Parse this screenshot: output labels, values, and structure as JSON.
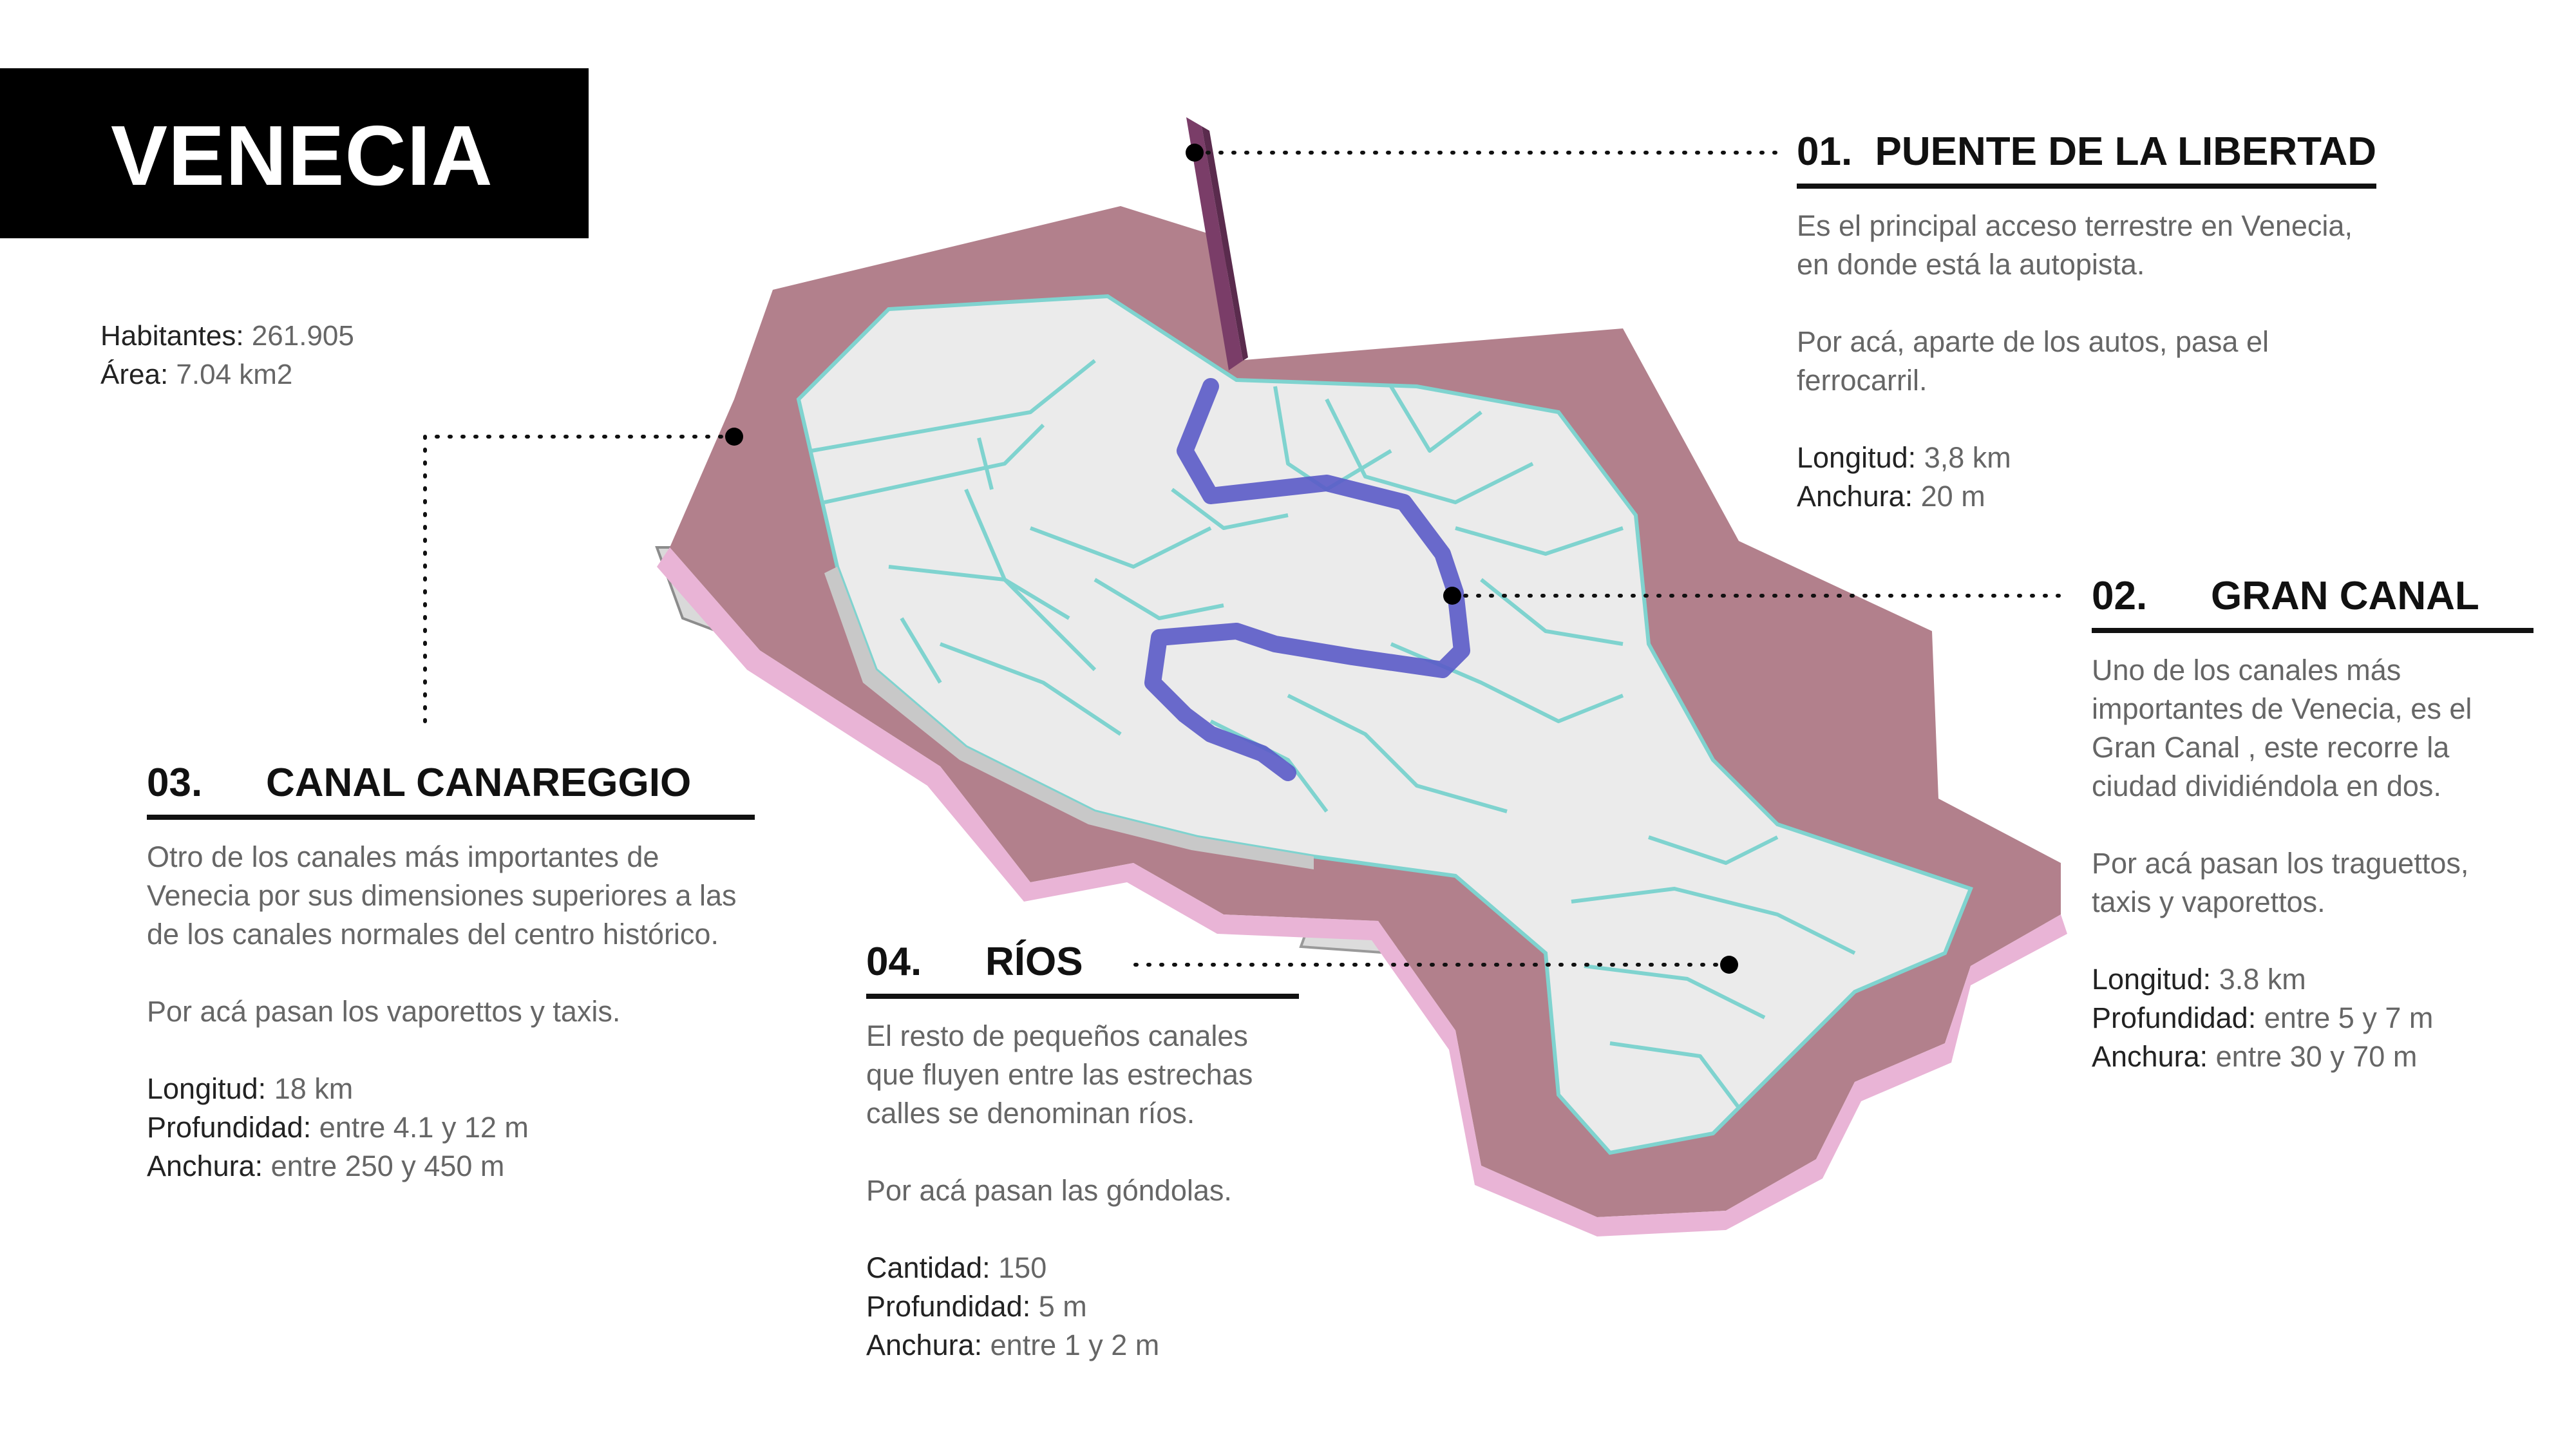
{
  "title": "VENECIA",
  "stats": {
    "habitantes_label": "Habitantes:",
    "habitantes_value": "261.905",
    "area_label": "Área:",
    "area_value": "7.04 km2"
  },
  "colors": {
    "lagoon": "#b2808c",
    "lagoon_edge": "#e9b4d6",
    "land": "#ebebeb",
    "canal": "#bfe6e4",
    "canal_edge": "#7fd3cf",
    "gran_canal": "#5b5bc8",
    "bridge": "#7a3d68"
  },
  "labels": [
    {
      "id": "puente",
      "number": "01.",
      "heading": "PUENTE DE LA LIBERTAD",
      "paragraphs": [
        "Es el principal acceso terrestre en Venecia, en donde está la autopista.",
        "Por acá, aparte de los autos, pasa el ferrocarril."
      ],
      "facts": [
        {
          "label": "Longitud:",
          "value": "3,8 km"
        },
        {
          "label": "Anchura:",
          "value": "20 m"
        }
      ]
    },
    {
      "id": "gran-canal",
      "number": "02.",
      "heading": "GRAN CANAL",
      "paragraphs": [
        "Uno de los canales más importantes de Venecia, es el Gran Canal , este recorre la ciudad dividiéndola en dos.",
        "Por acá pasan los traguettos, taxis y vaporettos."
      ],
      "facts": [
        {
          "label": "Longitud:",
          "value": "3.8 km"
        },
        {
          "label": "Profundidad:",
          "value": "entre 5 y 7 m"
        },
        {
          "label": "Anchura:",
          "value": "entre 30 y 70 m"
        }
      ]
    },
    {
      "id": "canareggio",
      "number": "03.",
      "heading": "CANAL CANAREGGIO",
      "paragraphs": [
        "Otro de los canales más importantes de Venecia por sus dimensiones superiores a las de los canales normales del centro histórico.",
        "Por acá pasan los vaporettos y taxis."
      ],
      "facts": [
        {
          "label": "Longitud:",
          "value": "18 km"
        },
        {
          "label": "Profundidad:",
          "value": "entre 4.1 y 12 m"
        },
        {
          "label": "Anchura:",
          "value": "entre 250 y 450 m"
        }
      ]
    },
    {
      "id": "rios",
      "number": "04.",
      "heading": "RÍOS",
      "paragraphs": [
        "El resto de pequeños canales que fluyen entre las estrechas calles se denominan ríos.",
        "Por acá pasan las góndolas."
      ],
      "facts": [
        {
          "label": "Cantidad:",
          "value": "150"
        },
        {
          "label": "Profundidad:",
          "value": "5 m"
        },
        {
          "label": "Anchura:",
          "value": "entre 1 y 2 m"
        }
      ]
    }
  ]
}
